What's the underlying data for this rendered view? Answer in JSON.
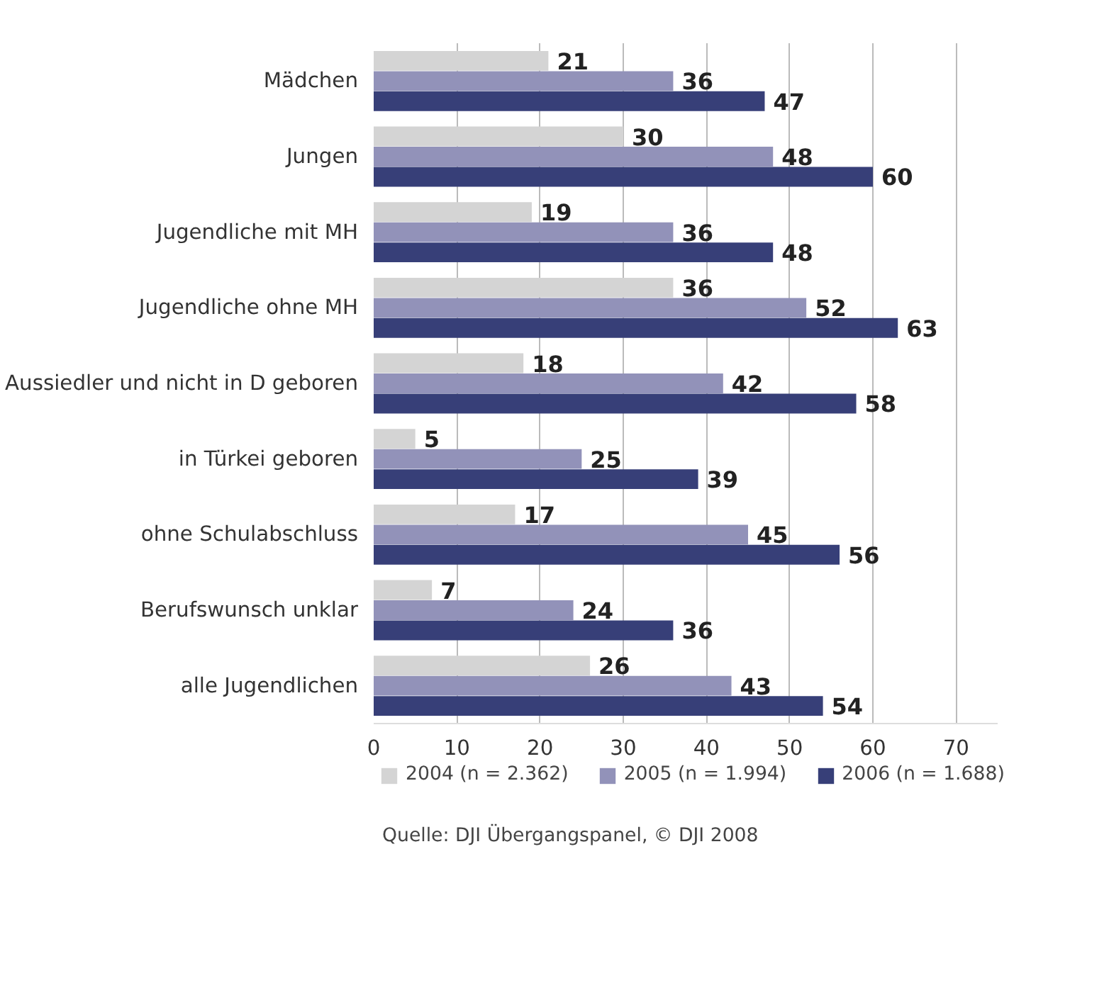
{
  "chart_data": {
    "type": "bar",
    "orientation": "horizontal",
    "categories": [
      "Mädchen",
      "Jungen",
      "Jugendliche mit MH",
      "Jugendliche ohne MH",
      "Aussiedler und nicht in D geboren",
      "in Türkei geboren",
      "ohne Schulabschluss",
      "Berufswunsch unklar",
      "alle Jugendlichen"
    ],
    "series": [
      {
        "name": "2004 (n = 2.362)",
        "color": "#d4d4d4",
        "values": [
          21,
          30,
          19,
          36,
          18,
          5,
          17,
          7,
          26
        ]
      },
      {
        "name": "2005 (n = 1.994)",
        "color": "#9292b9",
        "values": [
          36,
          48,
          36,
          52,
          42,
          25,
          45,
          24,
          43
        ]
      },
      {
        "name": "2006 (n = 1.688)",
        "color": "#373f78",
        "values": [
          47,
          60,
          48,
          63,
          58,
          39,
          56,
          36,
          54
        ]
      }
    ],
    "xlim": [
      0,
      75
    ],
    "xticks": [
      0,
      10,
      20,
      30,
      40,
      50,
      60,
      70
    ],
    "grid": "x",
    "data_labels": true,
    "legend": "bottom",
    "annotations": [
      "Quelle: DJI Übergangspanel, © DJI 2008"
    ]
  }
}
